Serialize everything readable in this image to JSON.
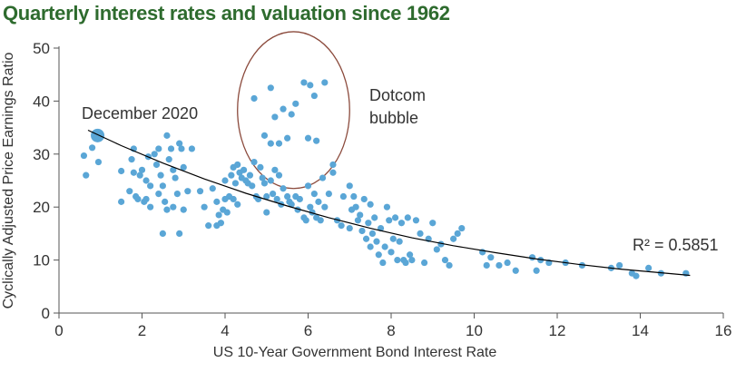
{
  "chart_data": {
    "type": "scatter",
    "title": "Quarterly interest rates and valuation since 1962",
    "xlabel": "US 10-Year Government Bond Interest Rate",
    "ylabel": "Cyclically Adjusted Price Earnings Ratio",
    "xlim": [
      0,
      16
    ],
    "ylim": [
      0,
      50
    ],
    "xticks": [
      "0",
      "2",
      "4",
      "6",
      "8",
      "10",
      "12",
      "14",
      "16"
    ],
    "yticks": [
      "0",
      "10",
      "20",
      "30",
      "40",
      "50"
    ],
    "grid": false,
    "point_color": "#5aa6d6",
    "fit_color": "#000000",
    "ellipse_color": "#8b4a3c",
    "highlight": {
      "label": "December 2020",
      "x": 0.93,
      "y": 33.5
    },
    "annotations": [
      {
        "text_lines": [
          "Dotcom",
          "bubble"
        ]
      },
      {
        "text": "R² = 0.5851"
      }
    ],
    "fit_label": "R² = 0.5851",
    "fit_curve": [
      [
        0.7,
        34.5
      ],
      [
        1.5,
        31.6
      ],
      [
        2.5,
        28.3
      ],
      [
        3.5,
        25.3
      ],
      [
        4.5,
        22.6
      ],
      [
        5.5,
        20.2
      ],
      [
        6.5,
        18.0
      ],
      [
        7.5,
        16.0
      ],
      [
        8.5,
        14.2
      ],
      [
        9.5,
        12.7
      ],
      [
        10.5,
        11.4
      ],
      [
        11.5,
        10.2
      ],
      [
        12.5,
        9.2
      ],
      [
        13.5,
        8.3
      ],
      [
        14.5,
        7.6
      ],
      [
        15.2,
        7.1
      ]
    ],
    "points": [
      [
        0.6,
        29.7
      ],
      [
        0.65,
        26.0
      ],
      [
        0.8,
        31.2
      ],
      [
        0.9,
        33.0
      ],
      [
        0.95,
        28.5
      ],
      [
        1.5,
        26.8
      ],
      [
        1.5,
        21.0
      ],
      [
        1.7,
        23.0
      ],
      [
        1.75,
        29.0
      ],
      [
        1.8,
        31.0
      ],
      [
        1.8,
        26.5
      ],
      [
        1.85,
        22.0
      ],
      [
        1.9,
        21.5
      ],
      [
        1.95,
        26.0
      ],
      [
        2.0,
        27.0
      ],
      [
        2.05,
        21.0
      ],
      [
        2.1,
        25.0
      ],
      [
        2.1,
        21.5
      ],
      [
        2.15,
        29.5
      ],
      [
        2.2,
        24.0
      ],
      [
        2.2,
        20.0
      ],
      [
        2.3,
        30.0
      ],
      [
        2.35,
        28.0
      ],
      [
        2.4,
        31.0
      ],
      [
        2.45,
        26.0
      ],
      [
        2.5,
        24.0
      ],
      [
        2.55,
        21.0
      ],
      [
        2.6,
        33.5
      ],
      [
        2.65,
        29.0
      ],
      [
        2.7,
        31.0
      ],
      [
        2.75,
        27.0
      ],
      [
        2.8,
        25.5
      ],
      [
        2.85,
        22.5
      ],
      [
        2.9,
        32.0
      ],
      [
        2.95,
        31.0
      ],
      [
        3.0,
        27.5
      ],
      [
        2.4,
        22.5
      ],
      [
        2.5,
        15.0
      ],
      [
        2.9,
        15.0
      ],
      [
        3.0,
        19.5
      ],
      [
        3.1,
        23.0
      ],
      [
        2.6,
        19.5
      ],
      [
        2.75,
        20.0
      ],
      [
        3.2,
        31.0
      ],
      [
        3.4,
        23.0
      ],
      [
        3.5,
        20.0
      ],
      [
        3.6,
        16.5
      ],
      [
        3.7,
        23.5
      ],
      [
        3.8,
        21.0
      ],
      [
        3.8,
        16.5
      ],
      [
        3.85,
        18.5
      ],
      [
        3.9,
        17.0
      ],
      [
        3.95,
        19.5
      ],
      [
        4.0,
        21.5
      ],
      [
        4.0,
        25.0
      ],
      [
        4.05,
        19.0
      ],
      [
        4.1,
        22.0
      ],
      [
        4.15,
        26.0
      ],
      [
        4.2,
        21.5
      ],
      [
        4.2,
        27.5
      ],
      [
        4.25,
        24.5
      ],
      [
        4.3,
        28.0
      ],
      [
        4.3,
        20.5
      ],
      [
        4.35,
        26.5
      ],
      [
        4.4,
        25.5
      ],
      [
        4.45,
        27.0
      ],
      [
        4.5,
        25.0
      ],
      [
        4.55,
        24.5
      ],
      [
        4.6,
        26.0
      ],
      [
        4.65,
        24.0
      ],
      [
        4.7,
        28.5
      ],
      [
        4.75,
        22.0
      ],
      [
        4.8,
        21.5
      ],
      [
        4.85,
        27.5
      ],
      [
        4.9,
        25.5
      ],
      [
        4.95,
        24.5
      ],
      [
        5.0,
        22.0
      ],
      [
        5.0,
        19.0
      ],
      [
        5.1,
        25.0
      ],
      [
        5.15,
        22.5
      ],
      [
        5.2,
        27.0
      ],
      [
        5.25,
        21.5
      ],
      [
        5.3,
        26.0
      ],
      [
        5.35,
        20.5
      ],
      [
        5.4,
        23.5
      ],
      [
        5.5,
        22.0
      ],
      [
        5.55,
        21.0
      ],
      [
        5.6,
        20.5
      ],
      [
        5.7,
        22.0
      ],
      [
        5.75,
        19.5
      ],
      [
        5.8,
        21.5
      ],
      [
        5.9,
        18.0
      ],
      [
        5.95,
        17.5
      ],
      [
        6.0,
        24.0
      ],
      [
        6.05,
        20.0
      ],
      [
        6.1,
        19.0
      ],
      [
        6.15,
        22.5
      ],
      [
        6.2,
        18.0
      ],
      [
        6.25,
        21.0
      ],
      [
        6.3,
        17.5
      ],
      [
        6.35,
        25.5
      ],
      [
        6.4,
        20.0
      ],
      [
        6.5,
        22.5
      ],
      [
        6.6,
        26.5
      ],
      [
        6.6,
        28.0
      ],
      [
        6.7,
        17.5
      ],
      [
        6.8,
        16.5
      ],
      [
        6.85,
        22.0
      ],
      [
        7.0,
        16.0
      ],
      [
        7.0,
        24.0
      ],
      [
        7.05,
        19.5
      ],
      [
        7.1,
        22.0
      ],
      [
        7.15,
        20.0
      ],
      [
        7.2,
        17.5
      ],
      [
        7.25,
        18.5
      ],
      [
        7.3,
        15.5
      ],
      [
        7.35,
        21.5
      ],
      [
        7.4,
        14.0
      ],
      [
        7.45,
        17.0
      ],
      [
        7.5,
        12.5
      ],
      [
        7.5,
        20.5
      ],
      [
        7.55,
        15.0
      ],
      [
        7.6,
        18.0
      ],
      [
        7.65,
        13.5
      ],
      [
        7.7,
        11.0
      ],
      [
        7.75,
        16.0
      ],
      [
        7.8,
        9.5
      ],
      [
        7.85,
        12.5
      ],
      [
        7.9,
        20.0
      ],
      [
        7.95,
        17.5
      ],
      [
        8.0,
        11.5
      ],
      [
        8.05,
        14.0
      ],
      [
        8.1,
        18.0
      ],
      [
        8.15,
        10.0
      ],
      [
        8.2,
        13.5
      ],
      [
        8.25,
        17.0
      ],
      [
        8.3,
        10.0
      ],
      [
        8.35,
        9.5
      ],
      [
        8.4,
        18.0
      ],
      [
        8.45,
        11.0
      ],
      [
        8.5,
        10.0
      ],
      [
        8.6,
        17.5
      ],
      [
        8.7,
        15.0
      ],
      [
        8.8,
        9.5
      ],
      [
        8.9,
        14.0
      ],
      [
        9.0,
        17.0
      ],
      [
        9.1,
        12.0
      ],
      [
        9.2,
        13.0
      ],
      [
        9.3,
        10.0
      ],
      [
        9.4,
        9.0
      ],
      [
        9.5,
        14.0
      ],
      [
        9.6,
        15.0
      ],
      [
        9.7,
        16.0
      ],
      [
        10.2,
        11.5
      ],
      [
        10.3,
        9.0
      ],
      [
        10.4,
        10.5
      ],
      [
        10.6,
        9.0
      ],
      [
        10.8,
        9.5
      ],
      [
        11.0,
        8.0
      ],
      [
        11.4,
        10.5
      ],
      [
        11.5,
        8.0
      ],
      [
        11.6,
        10.0
      ],
      [
        11.8,
        9.5
      ],
      [
        12.2,
        9.5
      ],
      [
        12.6,
        9.0
      ],
      [
        13.3,
        8.5
      ],
      [
        13.5,
        9.0
      ],
      [
        13.8,
        7.5
      ],
      [
        13.9,
        7.0
      ],
      [
        14.2,
        8.5
      ],
      [
        14.5,
        7.5
      ],
      [
        15.1,
        7.5
      ],
      [
        4.7,
        40.5
      ],
      [
        5.1,
        42.5
      ],
      [
        5.2,
        37.0
      ],
      [
        5.4,
        38.5
      ],
      [
        5.6,
        37.5
      ],
      [
        5.7,
        39.5
      ],
      [
        5.9,
        43.5
      ],
      [
        6.05,
        43.0
      ],
      [
        6.15,
        41.0
      ],
      [
        6.4,
        43.5
      ],
      [
        5.1,
        32.0
      ],
      [
        5.3,
        32.0
      ],
      [
        5.5,
        33.0
      ],
      [
        6.0,
        33.0
      ],
      [
        6.2,
        32.5
      ],
      [
        4.95,
        33.5
      ]
    ]
  }
}
